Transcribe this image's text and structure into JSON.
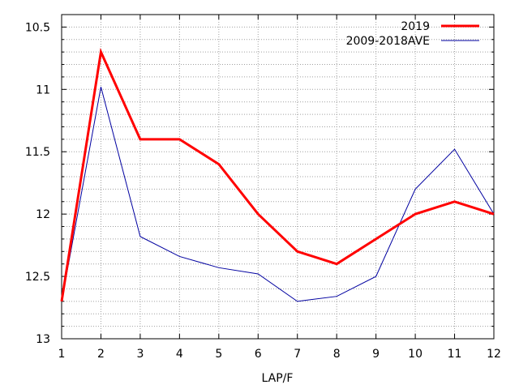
{
  "chart_data": {
    "type": "line",
    "title": "",
    "xlabel": "LAP/F",
    "ylabel": "",
    "x": [
      1,
      2,
      3,
      4,
      5,
      6,
      7,
      8,
      9,
      10,
      11,
      12
    ],
    "xlim": [
      1,
      12
    ],
    "ylim": [
      10.4,
      13
    ],
    "y_reversed": true,
    "x_ticks": [
      "1",
      "2",
      "3",
      "4",
      "5",
      "6",
      "7",
      "8",
      "9",
      "10",
      "11",
      "12"
    ],
    "y_ticks": [
      {
        "value": 10.5,
        "label": "10.5"
      },
      {
        "value": 11,
        "label": "11"
      },
      {
        "value": 11.5,
        "label": "11.5"
      },
      {
        "value": 12,
        "label": "12"
      },
      {
        "value": 12.5,
        "label": "12.5"
      },
      {
        "value": 13,
        "label": "13"
      }
    ],
    "grid": true,
    "legend_position": "top-right",
    "series": [
      {
        "name": "2019",
        "color": "#ff0000",
        "values": [
          12.7,
          10.7,
          11.4,
          11.4,
          11.6,
          12.0,
          12.3,
          12.4,
          12.2,
          12.0,
          11.9,
          12.0
        ]
      },
      {
        "name": "2009-2018AVE",
        "color": "#0000a0",
        "values": [
          12.7,
          10.98,
          12.18,
          12.34,
          12.43,
          12.48,
          12.7,
          12.66,
          12.5,
          11.8,
          11.48,
          12.0
        ]
      }
    ]
  }
}
